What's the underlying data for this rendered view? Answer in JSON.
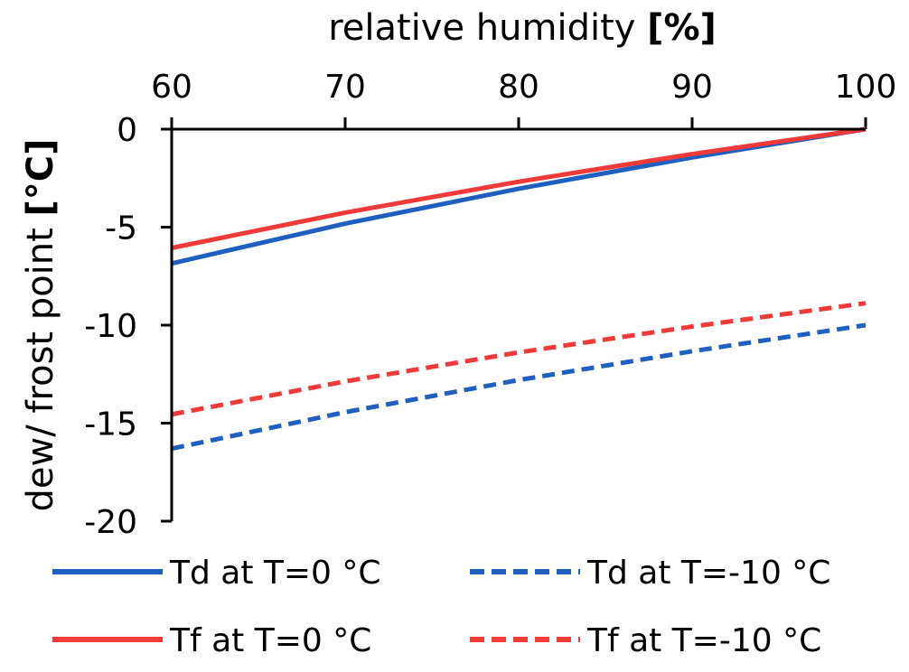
{
  "chart_data": {
    "type": "line",
    "xlabel": "relative humidity",
    "xlabel_unit": "[%]",
    "ylabel": "dew/ frost point",
    "ylabel_unit": "[°C]",
    "x_axis_position": "top",
    "xlim": [
      60,
      100
    ],
    "ylim": [
      -20,
      0
    ],
    "x_ticks": [
      "60",
      "70",
      "80",
      "90",
      "100"
    ],
    "y_ticks": [
      "0",
      "-5",
      "-10",
      "-15",
      "-20"
    ],
    "grid": false,
    "legend_position": "bottom",
    "x": [
      60,
      70,
      80,
      90,
      100
    ],
    "series": [
      {
        "name": "Td at T=0 °C",
        "color": "#1f5fbf",
        "dash": false,
        "values": [
          -6.85,
          -4.82,
          -3.04,
          -1.44,
          0
        ]
      },
      {
        "name": "Td at T=-10 °C",
        "color": "#1f5fbf",
        "dash": true,
        "values": [
          -16.3,
          -14.44,
          -12.8,
          -11.33,
          -10.0
        ]
      },
      {
        "name": "Tf at T=0 °C",
        "color": "#f03a3a",
        "dash": false,
        "values": [
          -6.06,
          -4.26,
          -2.68,
          -1.27,
          0
        ]
      },
      {
        "name": "Tf at T=-10 °C",
        "color": "#f03a3a",
        "dash": true,
        "values": [
          -14.55,
          -12.87,
          -11.39,
          -10.07,
          -8.88
        ]
      }
    ]
  }
}
